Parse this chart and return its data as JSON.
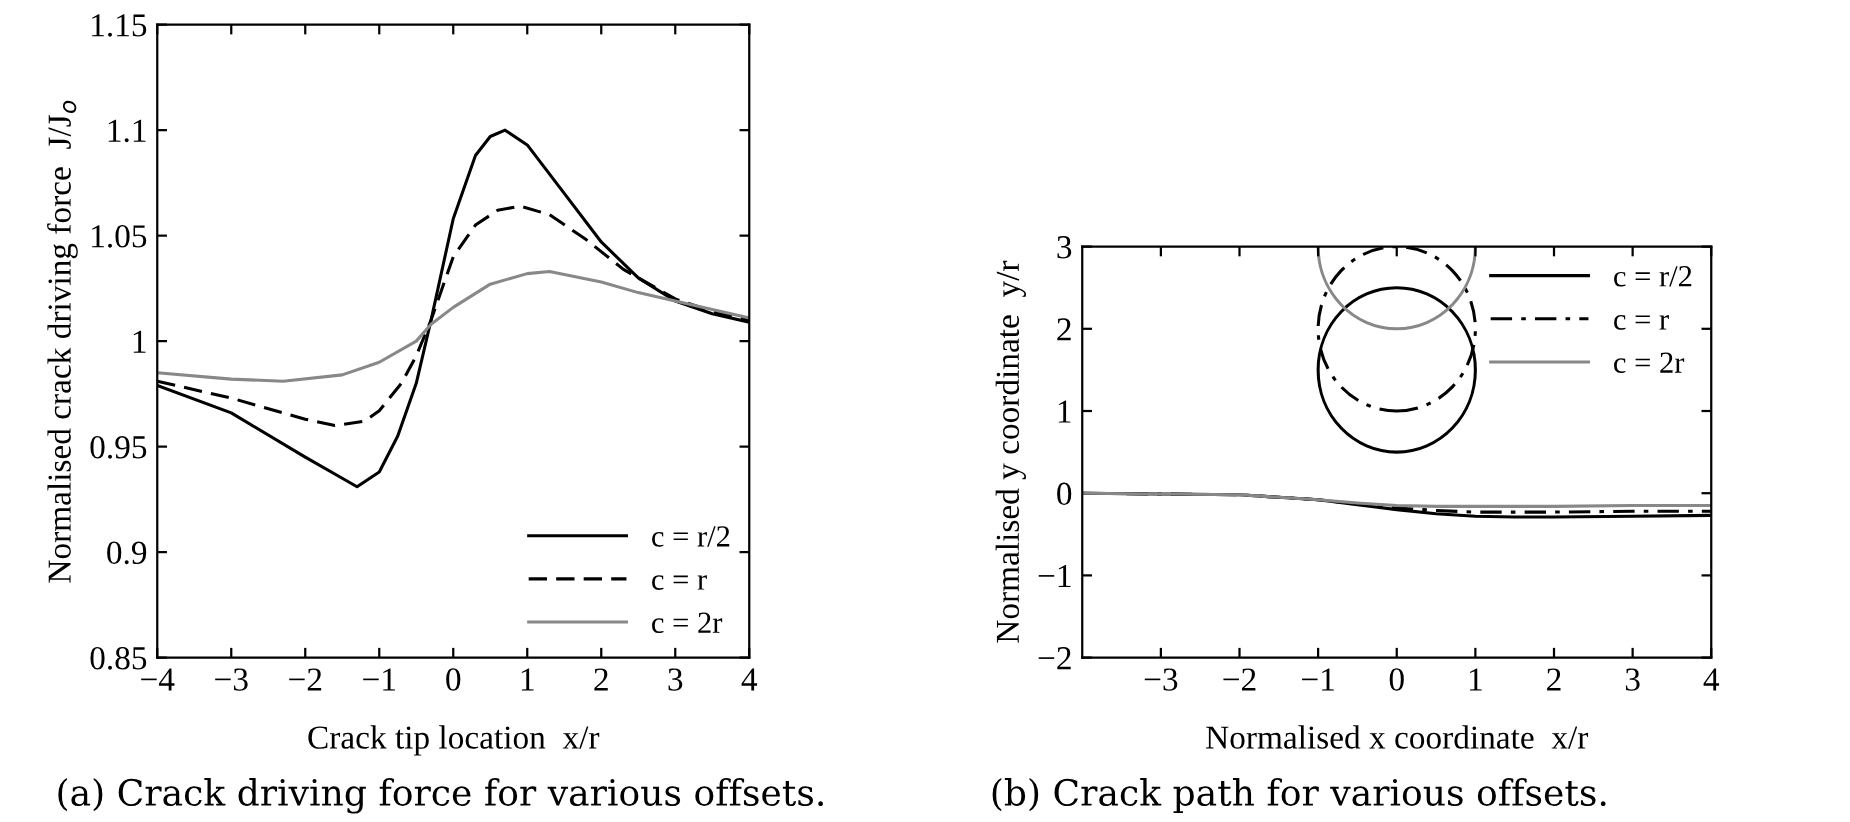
{
  "chart_data": [
    {
      "type": "line",
      "xlabel": "Crack tip location  x/r",
      "ylabel": "Normalised crack driving force  J/J$_{o}$",
      "xlim": [
        -4,
        4
      ],
      "xticks": [
        {
          "value": -4,
          "label": "−4"
        },
        {
          "value": -3,
          "label": "−3"
        },
        {
          "value": -2,
          "label": "−2"
        },
        {
          "value": -1,
          "label": "−1"
        },
        0,
        1,
        2,
        3,
        4
      ],
      "ylim": [
        0.85,
        1.15
      ],
      "yticks": [
        0.85,
        0.9,
        0.95,
        1,
        1.05,
        1.1,
        1.15
      ],
      "legend": "bottom right",
      "grid": false,
      "annotations": [
        "(a) Crack driving force for various offsets."
      ],
      "series": [
        {
          "name": "c = r/2",
          "color": "#000000",
          "line_style": "solid",
          "x": [
            -4,
            -3,
            -2,
            -1.5,
            -1.3,
            -1,
            -0.75,
            -0.5,
            -0.3,
            0,
            0.3,
            0.5,
            0.7,
            1,
            1.5,
            2,
            2.5,
            3,
            3.5,
            4
          ],
          "values": [
            0.979,
            0.966,
            0.945,
            0.935,
            0.931,
            0.938,
            0.955,
            0.98,
            1.01,
            1.058,
            1.088,
            1.097,
            1.1,
            1.093,
            1.07,
            1.047,
            1.03,
            1.019,
            1.013,
            1.009
          ]
        },
        {
          "name": "c = r",
          "color": "#000000",
          "line_style": "dashed",
          "x": [
            -4,
            -3,
            -2,
            -1.6,
            -1.2,
            -1,
            -0.7,
            -0.5,
            -0.3,
            0,
            0.3,
            0.6,
            0.9,
            1.3,
            1.8,
            2.3,
            3,
            3.5,
            4
          ],
          "values": [
            0.981,
            0.973,
            0.963,
            0.96,
            0.962,
            0.967,
            0.98,
            0.993,
            1.01,
            1.04,
            1.055,
            1.062,
            1.064,
            1.06,
            1.048,
            1.034,
            1.02,
            1.014,
            1.01
          ]
        },
        {
          "name": "c = 2r",
          "color": "#888888",
          "line_style": "solid",
          "x": [
            -4,
            -3,
            -2.3,
            -1.5,
            -1,
            -0.5,
            -0.3,
            0,
            0.5,
            1,
            1.3,
            2,
            2.5,
            3,
            3.5,
            4
          ],
          "values": [
            0.985,
            0.982,
            0.981,
            0.984,
            0.99,
            1.0,
            1.008,
            1.016,
            1.027,
            1.032,
            1.033,
            1.028,
            1.023,
            1.019,
            1.015,
            1.011
          ]
        }
      ]
    },
    {
      "type": "line",
      "xlabel": "Normalised x coordinate  x/r",
      "ylabel": "Normalised y coordinate  y/r",
      "xlim": [
        -4,
        4
      ],
      "xticks": [
        {
          "value": -3,
          "label": "−3"
        },
        {
          "value": -2,
          "label": "−2"
        },
        {
          "value": -1,
          "label": "−1"
        },
        0,
        1,
        2,
        3,
        4
      ],
      "ylim": [
        -2,
        3
      ],
      "yticks": [
        {
          "value": -2,
          "label": "−2"
        },
        {
          "value": -1,
          "label": "−1"
        },
        0,
        1,
        2,
        3
      ],
      "legend": "top right",
      "grid": false,
      "annotations": [
        "(b) Crack path for various offsets."
      ],
      "series": [
        {
          "name": "c = r/2",
          "color": "#000000",
          "line_style": "solid",
          "x": [
            -4,
            -3,
            -2,
            -1.5,
            -1,
            -0.5,
            0,
            0.5,
            1,
            1.5,
            2,
            3,
            4
          ],
          "values": [
            0,
            -0.01,
            -0.02,
            -0.05,
            -0.08,
            -0.14,
            -0.2,
            -0.25,
            -0.28,
            -0.29,
            -0.29,
            -0.28,
            -0.27
          ]
        },
        {
          "name": "c = r",
          "color": "#000000",
          "line_style": "dashdot",
          "x": [
            -4,
            -3,
            -2,
            -1.5,
            -1,
            -0.5,
            0,
            0.5,
            1,
            2,
            3,
            4
          ],
          "values": [
            0,
            -0.01,
            -0.02,
            -0.05,
            -0.08,
            -0.13,
            -0.18,
            -0.21,
            -0.23,
            -0.23,
            -0.22,
            -0.22
          ]
        },
        {
          "name": "c = 2r",
          "color": "#888888",
          "line_style": "solid",
          "x": [
            -4,
            -3,
            -2,
            -1.5,
            -1,
            -0.5,
            0,
            0.5,
            1,
            2,
            3,
            4
          ],
          "values": [
            0,
            -0.01,
            -0.02,
            -0.05,
            -0.08,
            -0.12,
            -0.15,
            -0.16,
            -0.16,
            -0.16,
            -0.15,
            -0.15
          ]
        }
      ]
    }
  ]
}
